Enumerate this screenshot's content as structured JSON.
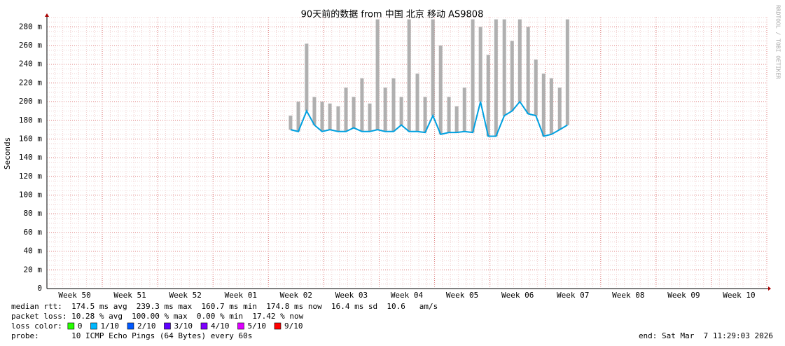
{
  "chart_data": {
    "type": "line",
    "title": "90天前的数据 from  中国 北京 移动 AS9808",
    "y_label": "Seconds",
    "watermark": "RRDTOOL / TOBI OETIKER",
    "xlim": [
      0,
      13
    ],
    "xticks": [
      {
        "value": 0.5,
        "label": "Week 50"
      },
      {
        "value": 1.5,
        "label": "Week 51"
      },
      {
        "value": 2.5,
        "label": "Week 52"
      },
      {
        "value": 3.5,
        "label": "Week 01"
      },
      {
        "value": 4.5,
        "label": "Week 02"
      },
      {
        "value": 5.5,
        "label": "Week 03"
      },
      {
        "value": 6.5,
        "label": "Week 04"
      },
      {
        "value": 7.5,
        "label": "Week 05"
      },
      {
        "value": 8.5,
        "label": "Week 06"
      },
      {
        "value": 9.5,
        "label": "Week 07"
      },
      {
        "value": 10.5,
        "label": "Week 08"
      },
      {
        "value": 11.5,
        "label": "Week 09"
      },
      {
        "value": 12.5,
        "label": "Week 10"
      }
    ],
    "ylim": [
      0,
      290
    ],
    "yticks": [
      0,
      {
        "value": 20,
        "label": "20 m"
      },
      {
        "value": 40,
        "label": "40 m"
      },
      {
        "value": 60,
        "label": "60 m"
      },
      {
        "value": 80,
        "label": "80 m"
      },
      {
        "value": 100,
        "label": "100 m"
      },
      {
        "value": 120,
        "label": "120 m"
      },
      {
        "value": 140,
        "label": "140 m"
      },
      {
        "value": 160,
        "label": "160 m"
      },
      {
        "value": 180,
        "label": "180 m"
      },
      {
        "value": 200,
        "label": "200 m"
      },
      {
        "value": 220,
        "label": "220 m"
      },
      {
        "value": 240,
        "label": "240 m"
      },
      {
        "value": 260,
        "label": "260 m"
      },
      {
        "value": 280,
        "label": "280 m"
      }
    ],
    "grid": true,
    "x": [
      4.4,
      4.54,
      4.69,
      4.83,
      4.97,
      5.11,
      5.26,
      5.4,
      5.54,
      5.69,
      5.83,
      5.97,
      6.11,
      6.26,
      6.4,
      6.54,
      6.69,
      6.83,
      6.97,
      7.11,
      7.26,
      7.4,
      7.54,
      7.69,
      7.83,
      7.97,
      8.11,
      8.26,
      8.4,
      8.54,
      8.69,
      8.83,
      8.97,
      9.11,
      9.26,
      9.4
    ],
    "series": [
      {
        "name": "median",
        "color": "#00a0e0",
        "values": [
          170,
          168,
          190,
          175,
          168,
          170,
          168,
          168,
          172,
          168,
          168,
          170,
          168,
          168,
          175,
          168,
          168,
          167,
          185,
          165,
          167,
          167,
          168,
          167,
          200,
          163,
          163,
          185,
          190,
          200,
          187,
          185,
          163,
          165,
          170,
          175
        ]
      },
      {
        "name": "max",
        "color": "#b0b0b0",
        "values": [
          185,
          200,
          262,
          205,
          200,
          198,
          195,
          215,
          205,
          225,
          198,
          288,
          215,
          225,
          205,
          288,
          230,
          205,
          288,
          260,
          205,
          195,
          215,
          288,
          280,
          250,
          288,
          288,
          265,
          288,
          280,
          245,
          230,
          225,
          215,
          288
        ]
      }
    ],
    "stats": [
      "median rtt:  174.5 ms avg  239.3 ms max  160.7 ms min  174.8 ms now  16.4 ms sd  10.6   am/s",
      "packet loss: 10.28 % avg  100.00 % max  0.00 % min  17.42 % now"
    ],
    "loss_title": "loss color:",
    "loss_colors": [
      {
        "label": "0",
        "color": "#26ff00"
      },
      {
        "label": "1/10",
        "color": "#00b8ff"
      },
      {
        "label": "2/10",
        "color": "#0059ff"
      },
      {
        "label": "3/10",
        "color": "#5e00ff"
      },
      {
        "label": "4/10",
        "color": "#7e00ff"
      },
      {
        "label": "5/10",
        "color": "#dd00ff"
      },
      {
        "label": "9/10",
        "color": "#ff0000"
      }
    ],
    "probe": "probe:       10 ICMP Echo Pings (64 Bytes) every 60s",
    "end": "end: Sat Mar  7 11:29:03 2026"
  }
}
